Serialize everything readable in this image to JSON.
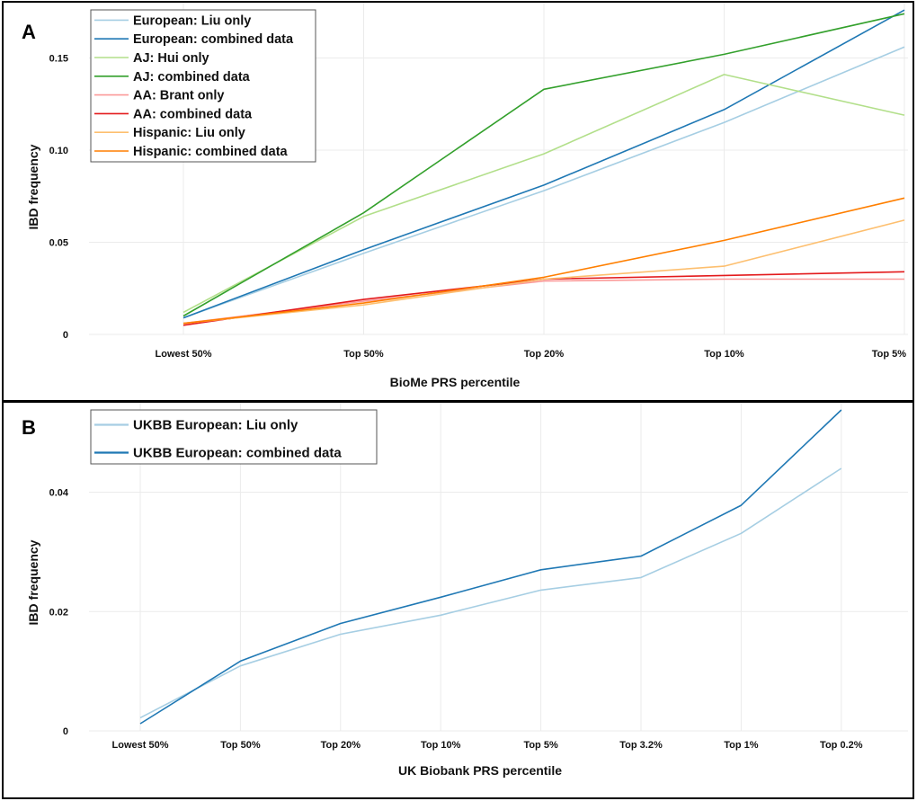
{
  "chart_data": [
    {
      "panel_label": "A",
      "type": "line",
      "xlabel": "BioMe  PRS percentile",
      "ylabel": "IBD frequency",
      "categories": [
        "Lowest 50%",
        "Top 50%",
        "Top 20%",
        "Top 10%",
        "Top 5%"
      ],
      "ylim": [
        0,
        0.18
      ],
      "yticks": [
        0,
        0.05,
        0.1,
        0.15
      ],
      "ytick_labels": [
        "0",
        "0.05",
        "0.10",
        "0.15"
      ],
      "grid": true,
      "legend_position": "top-left",
      "series": [
        {
          "name": "European: Liu only",
          "color": "#a6cee3",
          "values": [
            0.009,
            0.044,
            0.078,
            0.115,
            0.156
          ]
        },
        {
          "name": "European: combined data",
          "color": "#1f78b4",
          "values": [
            0.009,
            0.046,
            0.081,
            0.122,
            0.176
          ]
        },
        {
          "name": "AJ: Hui only",
          "color": "#b2df8a",
          "values": [
            0.012,
            0.064,
            0.098,
            0.141,
            0.119
          ]
        },
        {
          "name": "AJ: combined data",
          "color": "#33a02c",
          "values": [
            0.01,
            0.066,
            0.133,
            0.152,
            0.174
          ]
        },
        {
          "name": "AA: Brant only",
          "color": "#fb9a99",
          "values": [
            0.006,
            0.018,
            0.029,
            0.03,
            0.03
          ]
        },
        {
          "name": "AA: combined data",
          "color": "#e31a1c",
          "values": [
            0.005,
            0.019,
            0.03,
            0.032,
            0.034
          ]
        },
        {
          "name": "Hispanic: Liu only",
          "color": "#fdbf6f",
          "values": [
            0.006,
            0.016,
            0.03,
            0.037,
            0.062
          ]
        },
        {
          "name": "Hispanic: combined data",
          "color": "#ff7f00",
          "values": [
            0.006,
            0.017,
            0.031,
            0.051,
            0.074
          ]
        }
      ]
    },
    {
      "panel_label": "B",
      "type": "line",
      "xlabel": "UK Biobank  PRS percentile",
      "ylabel": "IBD frequency",
      "categories": [
        "Lowest 50%",
        "Top 50%",
        "Top 20%",
        "Top 10%",
        "Top 5%",
        "Top 3.2%",
        "Top 1%",
        "Top 0.2%"
      ],
      "ylim": [
        0,
        0.055
      ],
      "yticks": [
        0,
        0.02,
        0.04
      ],
      "ytick_labels": [
        "0",
        "0.02",
        "0.04"
      ],
      "grid": true,
      "legend_position": "top-left",
      "series": [
        {
          "name": "UKBB European: Liu only",
          "color": "#a6cee3",
          "values": [
            0.0022,
            0.0109,
            0.0162,
            0.0194,
            0.0236,
            0.0257,
            0.0331,
            0.044
          ]
        },
        {
          "name": "UKBB European: combined data",
          "color": "#1f78b4",
          "values": [
            0.0012,
            0.0117,
            0.018,
            0.0224,
            0.027,
            0.0293,
            0.0378,
            0.0538
          ]
        }
      ]
    }
  ]
}
